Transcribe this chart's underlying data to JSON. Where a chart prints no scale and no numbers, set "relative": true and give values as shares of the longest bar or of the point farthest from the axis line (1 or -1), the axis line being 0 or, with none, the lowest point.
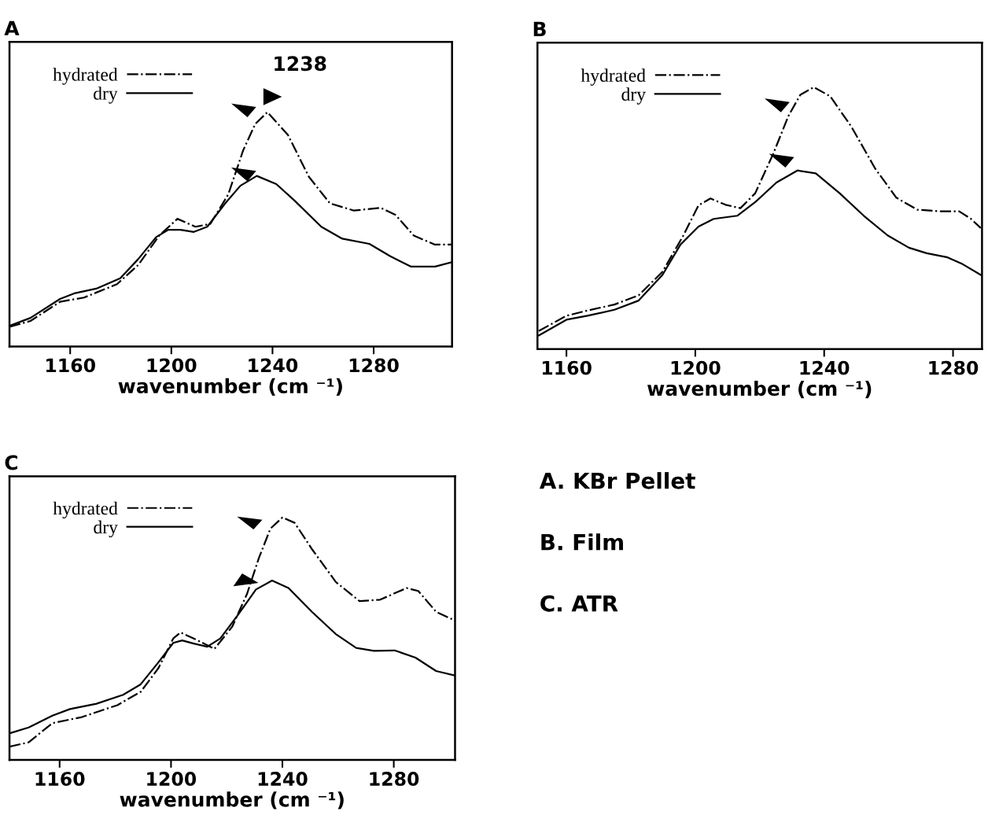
{
  "chart_data": [
    {
      "type": "line",
      "title": "A",
      "xlabel": "wavenumber (cm ⁻¹)",
      "relative": true,
      "xlim": [
        1136,
        1311
      ],
      "xticks": [
        1160,
        1200,
        1240,
        1280
      ],
      "legend": "top left",
      "grid": false,
      "marker": "none",
      "annotations": [
        {
          "text": "1238",
          "x": 1238,
          "y": 1.0
        }
      ],
      "series": [
        {
          "name": "hydrated",
          "color": "#000000",
          "line_style": "dashdot",
          "x": [
            1136,
            1144.3,
            1156,
            1165.5,
            1178.5,
            1186.9,
            1195.2,
            1202.4,
            1209.5,
            1215.4,
            1222.5,
            1228.4,
            1233.2,
            1238,
            1246.1,
            1254.4,
            1262.7,
            1272.2,
            1282.8,
            1288.7,
            1295.9,
            1304.2,
            1311
          ],
          "values": [
            0.084,
            0.109,
            0.191,
            0.209,
            0.266,
            0.348,
            0.473,
            0.545,
            0.511,
            0.523,
            0.649,
            0.837,
            0.95,
            1.0,
            0.903,
            0.724,
            0.611,
            0.58,
            0.592,
            0.561,
            0.473,
            0.435,
            0.435
          ]
        },
        {
          "name": "dry",
          "color": "#000000",
          "line_style": "solid",
          "x": [
            1136,
            1144.3,
            1156,
            1162,
            1170.3,
            1179.8,
            1186.9,
            1194,
            1198.8,
            1203.6,
            1208.9,
            1214.2,
            1221.3,
            1227.3,
            1233.8,
            1241.5,
            1248.6,
            1259.3,
            1267.6,
            1278.3,
            1286.6,
            1294.8,
            1304.3,
            1311
          ],
          "values": [
            0.088,
            0.122,
            0.203,
            0.228,
            0.247,
            0.291,
            0.373,
            0.467,
            0.498,
            0.498,
            0.489,
            0.511,
            0.611,
            0.686,
            0.728,
            0.693,
            0.624,
            0.511,
            0.46,
            0.438,
            0.385,
            0.341,
            0.341,
            0.36
          ]
        }
      ]
    },
    {
      "type": "line",
      "title": "B",
      "xlabel": "wavenumber (cm ⁻¹)",
      "relative": true,
      "xlim": [
        1151,
        1289
      ],
      "xticks": [
        1160,
        1200,
        1240,
        1280
      ],
      "legend": "top left",
      "grid": false,
      "marker": "none",
      "series": [
        {
          "name": "hydrated",
          "color": "#000000",
          "line_style": "dashdot",
          "x": [
            1151.4,
            1160,
            1166.5,
            1174.9,
            1182.4,
            1189.8,
            1196.3,
            1201,
            1204.7,
            1209.4,
            1214,
            1218.6,
            1224.2,
            1228.9,
            1232.6,
            1236.8,
            1241.9,
            1248.4,
            1255.9,
            1262.4,
            1268.9,
            1276.3,
            1281.9,
            1285.6,
            1288.6
          ],
          "values": [
            0.069,
            0.127,
            0.147,
            0.17,
            0.205,
            0.295,
            0.434,
            0.549,
            0.575,
            0.551,
            0.538,
            0.595,
            0.746,
            0.89,
            0.971,
            1.0,
            0.965,
            0.85,
            0.688,
            0.578,
            0.532,
            0.526,
            0.526,
            0.497,
            0.462
          ]
        },
        {
          "name": "dry",
          "color": "#000000",
          "line_style": "solid",
          "x": [
            1151.4,
            1160,
            1166.5,
            1174.9,
            1182.4,
            1189.8,
            1195.4,
            1201,
            1205.7,
            1213,
            1218.6,
            1225.2,
            1231.7,
            1237.4,
            1244.8,
            1252.3,
            1259.7,
            1266.3,
            1271.8,
            1278.3,
            1283,
            1288.6
          ],
          "values": [
            0.052,
            0.112,
            0.127,
            0.15,
            0.185,
            0.283,
            0.399,
            0.468,
            0.497,
            0.509,
            0.561,
            0.636,
            0.682,
            0.671,
            0.595,
            0.509,
            0.434,
            0.387,
            0.366,
            0.35,
            0.324,
            0.283
          ]
        }
      ]
    },
    {
      "type": "line",
      "title": "C",
      "xlabel": "wavenumber (cm ⁻¹)",
      "relative": true,
      "xlim": [
        1142,
        1302
      ],
      "xticks": [
        1160,
        1200,
        1240,
        1280
      ],
      "legend": "top left",
      "grid": false,
      "marker": "none",
      "series": [
        {
          "name": "hydrated",
          "color": "#000000",
          "line_style": "dashdot",
          "x": [
            1142,
            1148.9,
            1157.4,
            1168,
            1180.7,
            1189.1,
            1195.5,
            1200.8,
            1203.4,
            1208.2,
            1215.6,
            1222,
            1227.3,
            1231.5,
            1235.7,
            1240,
            1244.4,
            1250.7,
            1259.2,
            1267.7,
            1275.1,
            1284.6,
            1288.8,
            1295.2,
            1302
          ],
          "values": [
            0.055,
            0.073,
            0.152,
            0.177,
            0.226,
            0.281,
            0.379,
            0.501,
            0.526,
            0.501,
            0.458,
            0.55,
            0.685,
            0.831,
            0.954,
            1.0,
            0.978,
            0.868,
            0.734,
            0.655,
            0.661,
            0.709,
            0.697,
            0.611,
            0.575
          ]
        },
        {
          "name": "dry",
          "color": "#000000",
          "line_style": "solid",
          "x": [
            1142,
            1148.9,
            1157.4,
            1163.7,
            1173.2,
            1182.8,
            1189.1,
            1195.5,
            1200.8,
            1204,
            1208.2,
            1213,
            1217.7,
            1224.1,
            1230.5,
            1236.3,
            1242.2,
            1250.6,
            1259.1,
            1266.5,
            1272.9,
            1280.3,
            1287.8,
            1295.2,
            1302
          ],
          "values": [
            0.11,
            0.134,
            0.183,
            0.21,
            0.232,
            0.269,
            0.312,
            0.403,
            0.483,
            0.493,
            0.48,
            0.467,
            0.501,
            0.599,
            0.703,
            0.74,
            0.709,
            0.611,
            0.52,
            0.462,
            0.45,
            0.452,
            0.422,
            0.367,
            0.348
          ]
        }
      ]
    },
    {
      "type": "other",
      "annotations": [
        "A. KBr Pellet",
        "B. Film",
        "C. ATR"
      ]
    }
  ]
}
